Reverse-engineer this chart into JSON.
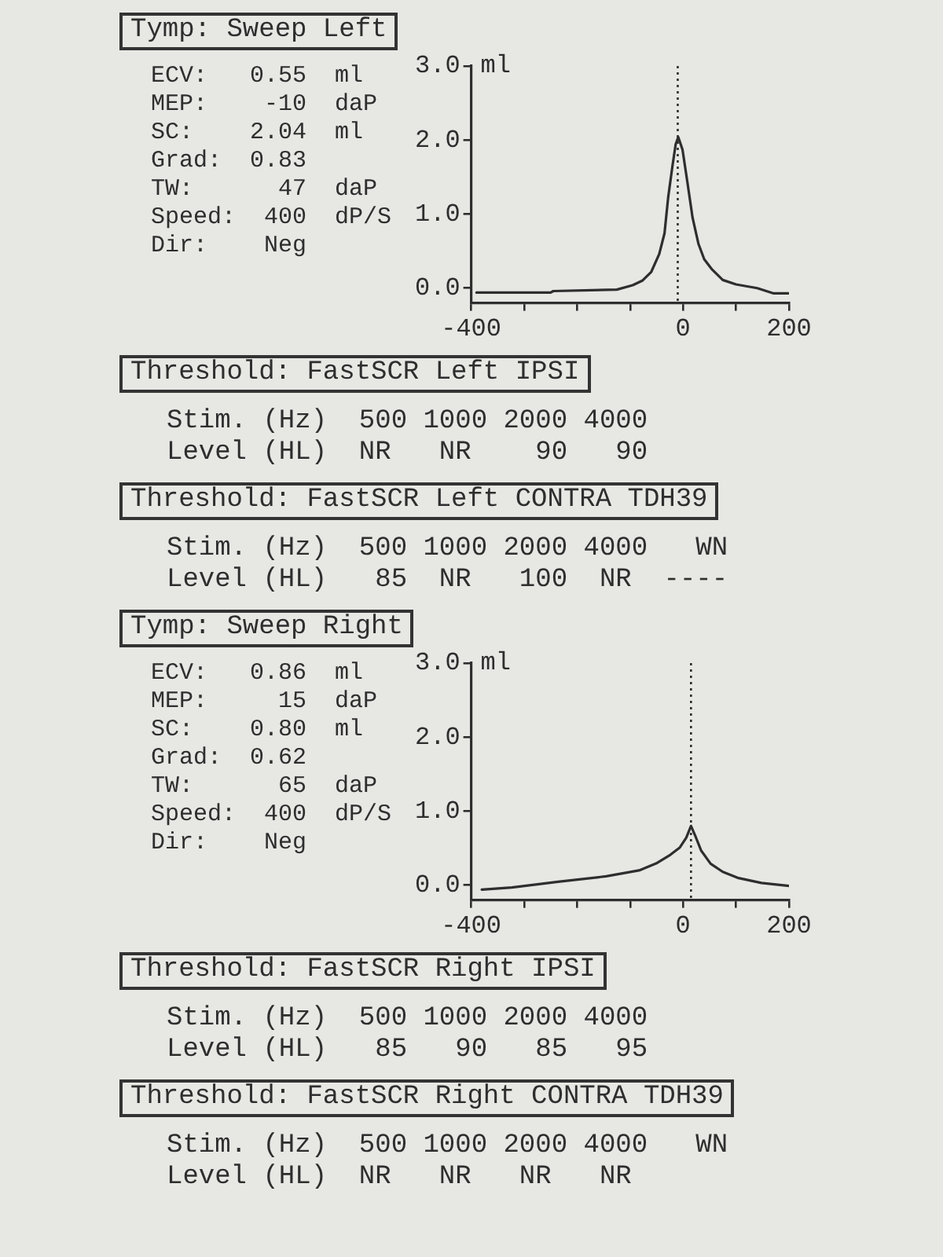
{
  "chart_data": [
    {
      "type": "line",
      "title": "Tymp: Sweep Left",
      "annotations": [
        "ECV:   0.55  ml",
        "MEP:    -10  daP",
        "SC:    2.04  ml",
        "Grad:  0.83",
        "TW:      47  daP",
        "Speed:  400  dP/S",
        "Dir:    Neg"
      ],
      "ylabel": "ml",
      "x": [
        -390,
        -350,
        -250,
        -245,
        -125,
        -95,
        -77,
        -60,
        -45,
        -35,
        -28,
        -20,
        -14,
        -9,
        -1,
        8,
        18,
        29,
        40,
        55,
        75,
        100,
        140,
        170,
        200
      ],
      "values": [
        -0.06,
        -0.06,
        -0.06,
        -0.04,
        -0.02,
        0.04,
        0.1,
        0.22,
        0.46,
        0.74,
        1.23,
        1.65,
        1.94,
        2.04,
        1.87,
        1.44,
        0.95,
        0.6,
        0.39,
        0.25,
        0.11,
        0.05,
        0.0,
        -0.07,
        -0.07
      ],
      "color": "#2e2e2e",
      "marker": "none",
      "xlim": [
        -400,
        200
      ],
      "xticks": [
        -400,
        {
          "value": -300,
          "label": null
        },
        {
          "value": -200,
          "label": null
        },
        {
          "value": -100,
          "label": null
        },
        0,
        {
          "value": 100,
          "label": null
        },
        200
      ],
      "ylim": [
        -0.2,
        3.0
      ],
      "yticks": [
        {
          "value": 0,
          "label": "0.0"
        },
        {
          "value": 1,
          "label": "1.0"
        },
        {
          "value": 2,
          "label": "2.0"
        },
        {
          "value": 3,
          "label": "3.0"
        }
      ],
      "ref_lines": [
        {
          "axis": "x",
          "value": -10,
          "line_style": "dotted"
        }
      ]
    },
    {
      "type": "other",
      "title": "Threshold: FastSCR Left IPSI",
      "annotations": [
        "Stim. (Hz)  500 1000 2000 4000",
        "Level (HL)  NR   NR    90   90"
      ]
    },
    {
      "type": "other",
      "title": "Threshold: FastSCR Left CONTRA TDH39",
      "annotations": [
        "Stim. (Hz)  500 1000 2000 4000   WN",
        "Level (HL)   85  NR   100  NR  ----"
      ]
    },
    {
      "type": "line",
      "title": "Tymp: Sweep Right",
      "annotations": [
        "ECV:   0.86  ml",
        "MEP:     15  daP",
        "SC:    0.80  ml",
        "Grad:  0.62",
        "TW:      65  daP",
        "Speed:  400  dP/S",
        "Dir:    Neg"
      ],
      "ylabel": "ml",
      "x": [
        -380,
        -323,
        -233,
        -145,
        -83,
        -49,
        -24,
        -6,
        6,
        15,
        24,
        34,
        52,
        75,
        103,
        148,
        200
      ],
      "values": [
        -0.06,
        -0.03,
        0.05,
        0.12,
        0.2,
        0.3,
        0.41,
        0.51,
        0.64,
        0.8,
        0.65,
        0.47,
        0.29,
        0.18,
        0.1,
        0.03,
        -0.01
      ],
      "color": "#2e2e2e",
      "marker": "none",
      "xlim": [
        -400,
        200
      ],
      "xticks": [
        -400,
        {
          "value": -300,
          "label": null
        },
        {
          "value": -200,
          "label": null
        },
        {
          "value": -100,
          "label": null
        },
        0,
        {
          "value": 100,
          "label": null
        },
        200
      ],
      "ylim": [
        -0.2,
        3.0
      ],
      "yticks": [
        {
          "value": 0,
          "label": "0.0"
        },
        {
          "value": 1,
          "label": "1.0"
        },
        {
          "value": 2,
          "label": "2.0"
        },
        {
          "value": 3,
          "label": "3.0"
        }
      ],
      "ref_lines": [
        {
          "axis": "x",
          "value": 15,
          "line_style": "dotted"
        }
      ]
    },
    {
      "type": "other",
      "title": "Threshold: FastSCR Right IPSI",
      "annotations": [
        "Stim. (Hz)  500 1000 2000 4000",
        "Level (HL)   85   90   85   95"
      ]
    },
    {
      "type": "other",
      "title": "Threshold: FastSCR Right CONTRA TDH39",
      "annotations": [
        "Stim. (Hz)  500 1000 2000 4000   WN",
        "Level (HL)  NR   NR   NR   NR"
      ]
    }
  ]
}
